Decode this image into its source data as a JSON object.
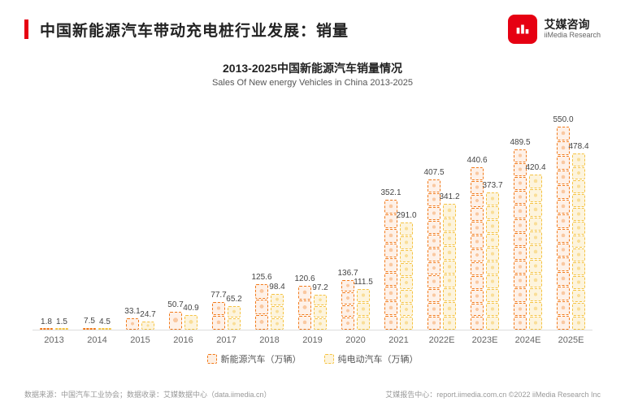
{
  "header": {
    "title": "中国新能源汽车带动充电桩行业发展：销量",
    "brand_cn": "艾媒咨询",
    "brand_en": "iiMedia Research",
    "accent_color": "#e60012"
  },
  "chart": {
    "title_cn": "2013-2025中国新能源汽车销量情况",
    "title_en": "Sales Of New energy Vehicles in China 2013-2025",
    "type": "grouped-bar-pictogram",
    "ylim": [
      0,
      570
    ],
    "value_unit": "万辆",
    "series": [
      {
        "key": "nev",
        "label": "新能源汽车（万辆）",
        "color": "#f27a1a"
      },
      {
        "key": "bev",
        "label": "纯电动汽车（万辆）",
        "color": "#f5c342"
      }
    ],
    "categories": [
      "2013",
      "2014",
      "2015",
      "2016",
      "2017",
      "2018",
      "2019",
      "2020",
      "2021",
      "2022E",
      "2023E",
      "2024E",
      "2025E"
    ],
    "data": {
      "nev": [
        1.8,
        7.5,
        33.1,
        50.7,
        77.7,
        125.6,
        120.6,
        136.7,
        352.1,
        407.5,
        440.6,
        489.5,
        550.0
      ],
      "bev": [
        1.5,
        4.5,
        24.7,
        40.9,
        65.2,
        98.4,
        97.2,
        111.5,
        291.0,
        341.2,
        373.7,
        420.4,
        478.4
      ]
    },
    "chunk_factor": 38,
    "label_fontsize": 10,
    "axis_fontsize": 11,
    "axis_color": "#666666",
    "grid_color": "#dddddd",
    "background_color": "#ffffff"
  },
  "footer": {
    "left": "数据来源：中国汽车工业协会；数据收录：艾媒数据中心（data.iimedia.cn）",
    "right": "艾媒报告中心：report.iimedia.com.cn    ©2022  iiMedia Research Inc"
  }
}
